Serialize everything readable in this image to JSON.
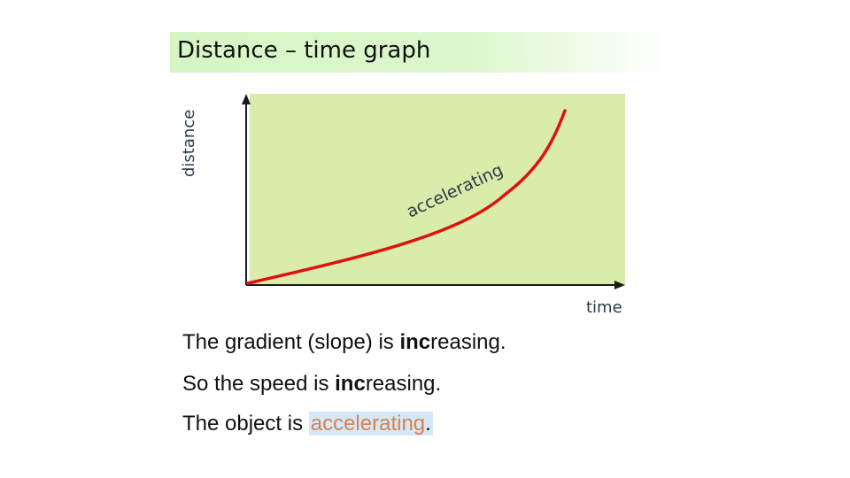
{
  "title": "Distance – time  graph",
  "graph": {
    "y_axis_label": "distance",
    "x_axis_label": "time",
    "curve_label": "accelerating",
    "colors": {
      "plot_background": "#d9ecaa",
      "curve": "#e01010",
      "axes": "#1a1a1a",
      "labels": "#2b3a4a"
    }
  },
  "statements": {
    "line1": {
      "before": "The gradient (slope) is ",
      "bold": "inc",
      "after": "reasing."
    },
    "line2": {
      "before": "So the speed is ",
      "bold": "inc",
      "after": "reasing."
    },
    "line3": {
      "before": "The object is ",
      "highlighted": "accelerating",
      "after": "."
    }
  }
}
